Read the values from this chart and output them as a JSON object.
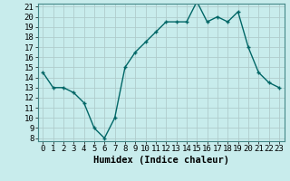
{
  "x": [
    0,
    1,
    2,
    3,
    4,
    5,
    6,
    7,
    8,
    9,
    10,
    11,
    12,
    13,
    14,
    15,
    16,
    17,
    18,
    19,
    20,
    21,
    22,
    23
  ],
  "y": [
    14.5,
    13.0,
    13.0,
    12.5,
    11.5,
    9.0,
    8.0,
    10.0,
    15.0,
    16.5,
    17.5,
    18.5,
    19.5,
    19.5,
    19.5,
    21.5,
    19.5,
    20.0,
    19.5,
    20.5,
    17.0,
    14.5,
    13.5,
    13.0
  ],
  "xlabel": "Humidex (Indice chaleur)",
  "line_color": "#006666",
  "marker": "+",
  "bg_color": "#c8ecec",
  "grid_color": "#b0cccc",
  "ylim": [
    8,
    21
  ],
  "xlim": [
    -0.5,
    23.5
  ],
  "yticks": [
    8,
    9,
    10,
    11,
    12,
    13,
    14,
    15,
    16,
    17,
    18,
    19,
    20,
    21
  ],
  "xticks": [
    0,
    1,
    2,
    3,
    4,
    5,
    6,
    7,
    8,
    9,
    10,
    11,
    12,
    13,
    14,
    15,
    16,
    17,
    18,
    19,
    20,
    21,
    22,
    23
  ],
  "tick_fontsize": 6.5,
  "xlabel_fontsize": 7.5,
  "linewidth": 1.0,
  "markersize": 3.5
}
